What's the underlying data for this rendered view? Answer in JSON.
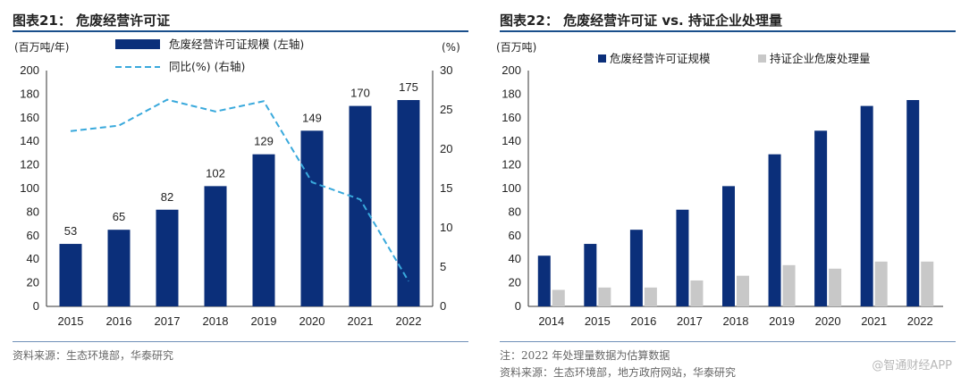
{
  "left": {
    "title": "图表21： 危废经营许可证",
    "source": "资料来源：生态环境部，华泰研究",
    "chart_data": {
      "type": "bar",
      "categories": [
        "2015",
        "2016",
        "2017",
        "2018",
        "2019",
        "2020",
        "2021",
        "2022"
      ],
      "series": [
        {
          "name": "危废经营许可证规模 (左轴)",
          "values": [
            53,
            65,
            82,
            102,
            129,
            149,
            170,
            175
          ],
          "color": "#0b2f7a",
          "axis": "left",
          "kind": "bar",
          "labels": [
            "53",
            "65",
            "82",
            "102",
            "129",
            "149",
            "170",
            "175"
          ]
        },
        {
          "name": "同比(%) (右轴)",
          "values": [
            22.3,
            23.0,
            26.3,
            24.8,
            26.1,
            15.8,
            13.6,
            3.2
          ],
          "color": "#39a9dc",
          "axis": "right",
          "kind": "line-dashed"
        }
      ],
      "left_unit": "(百万吨/年)",
      "right_unit": "(%)",
      "ylim": [
        0,
        200
      ],
      "yticks": [
        0,
        20,
        40,
        60,
        80,
        100,
        120,
        140,
        160,
        180,
        200
      ],
      "y2lim": [
        0,
        30
      ],
      "y2ticks": [
        0,
        5,
        10,
        15,
        20,
        25,
        30
      ],
      "legend_position": "top-center"
    }
  },
  "right": {
    "title": "图表22： 危废经营许可证 vs. 持证企业处理量",
    "note": "注：2022 年处理量数据为估算数据",
    "source": "资料来源：生态环境部，地方政府网站，华泰研究",
    "chart_data": {
      "type": "bar",
      "categories": [
        "2014",
        "2015",
        "2016",
        "2017",
        "2018",
        "2019",
        "2020",
        "2021",
        "2022"
      ],
      "series": [
        {
          "name": "危废经营许可证规模",
          "values": [
            43,
            53,
            65,
            82,
            102,
            129,
            149,
            170,
            175
          ],
          "color": "#0b2f7a"
        },
        {
          "name": "持证企业危废处理量",
          "values": [
            14,
            16,
            16,
            22,
            26,
            35,
            32,
            38,
            38
          ],
          "color": "#c8c8c8"
        }
      ],
      "left_unit": "(百万吨)",
      "ylim": [
        0,
        200
      ],
      "yticks": [
        0,
        20,
        40,
        60,
        80,
        100,
        120,
        140,
        160,
        180,
        200
      ],
      "legend_position": "top-center"
    }
  },
  "watermark": "@智通财经APP"
}
